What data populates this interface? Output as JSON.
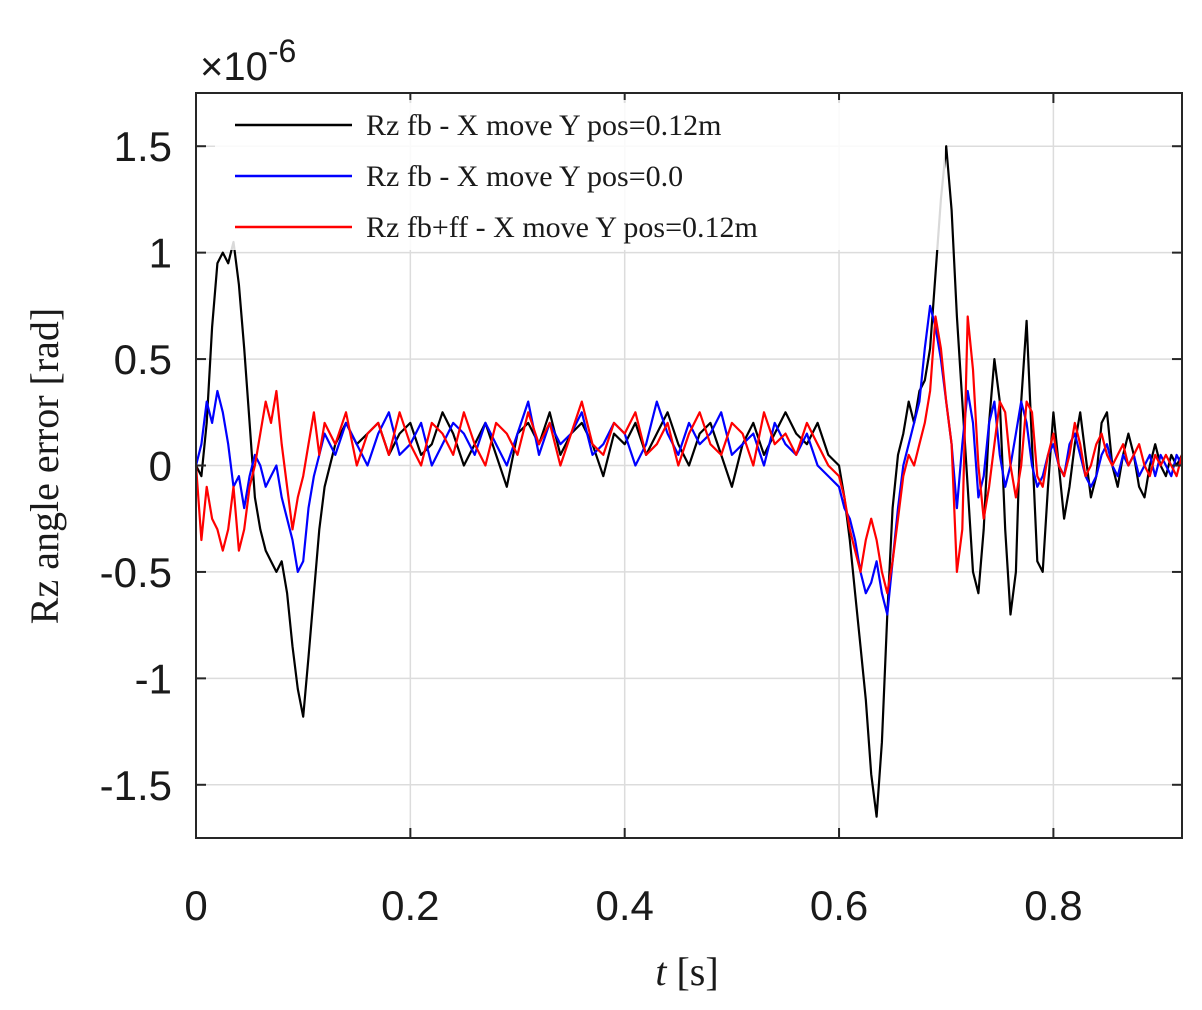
{
  "chart_data": {
    "type": "line",
    "title": "",
    "xlabel": "t [s]",
    "ylabel": "Rz angle error [rad]",
    "y_exponent_label": "×10-6",
    "y_scale": 1e-06,
    "xlim": [
      0,
      0.92
    ],
    "ylim": [
      -1.75,
      1.75
    ],
    "x_ticks": [
      0,
      0.2,
      0.4,
      0.6,
      0.8
    ],
    "x_tick_labels": [
      "0",
      "0.2",
      "0.4",
      "0.6",
      "0.8"
    ],
    "y_ticks": [
      1.5,
      1,
      0.5,
      0,
      -0.5,
      -1,
      -1.5
    ],
    "y_tick_labels": [
      "1.5",
      "1",
      "0.5",
      "0",
      "-0.5",
      "-1",
      "-1.5"
    ],
    "grid": true,
    "legend_position": "top",
    "series": [
      {
        "name": "Rz fb - X move Y pos=0.12m",
        "color": "#000000",
        "x": [
          0,
          0.005,
          0.01,
          0.015,
          0.02,
          0.025,
          0.03,
          0.035,
          0.04,
          0.045,
          0.05,
          0.055,
          0.06,
          0.065,
          0.07,
          0.075,
          0.08,
          0.085,
          0.09,
          0.095,
          0.1,
          0.105,
          0.11,
          0.115,
          0.12,
          0.13,
          0.14,
          0.15,
          0.16,
          0.17,
          0.18,
          0.19,
          0.2,
          0.21,
          0.22,
          0.23,
          0.24,
          0.25,
          0.26,
          0.27,
          0.28,
          0.29,
          0.3,
          0.31,
          0.32,
          0.33,
          0.34,
          0.35,
          0.36,
          0.37,
          0.38,
          0.39,
          0.4,
          0.41,
          0.42,
          0.43,
          0.44,
          0.45,
          0.46,
          0.47,
          0.48,
          0.49,
          0.5,
          0.51,
          0.52,
          0.53,
          0.54,
          0.55,
          0.56,
          0.57,
          0.58,
          0.59,
          0.6,
          0.605,
          0.61,
          0.615,
          0.62,
          0.625,
          0.63,
          0.635,
          0.64,
          0.645,
          0.65,
          0.655,
          0.66,
          0.665,
          0.67,
          0.675,
          0.68,
          0.685,
          0.69,
          0.695,
          0.7,
          0.705,
          0.71,
          0.715,
          0.72,
          0.725,
          0.73,
          0.735,
          0.74,
          0.745,
          0.75,
          0.755,
          0.76,
          0.765,
          0.77,
          0.775,
          0.78,
          0.785,
          0.79,
          0.795,
          0.8,
          0.805,
          0.81,
          0.815,
          0.82,
          0.825,
          0.83,
          0.835,
          0.84,
          0.845,
          0.85,
          0.855,
          0.86,
          0.865,
          0.87,
          0.875,
          0.88,
          0.885,
          0.89,
          0.895,
          0.9,
          0.905,
          0.91,
          0.915,
          0.92
        ],
        "values": [
          0,
          -0.05,
          0.2,
          0.65,
          0.95,
          1.0,
          0.95,
          1.05,
          0.85,
          0.55,
          0.2,
          -0.15,
          -0.3,
          -0.4,
          -0.45,
          -0.5,
          -0.45,
          -0.6,
          -0.85,
          -1.05,
          -1.18,
          -0.9,
          -0.6,
          -0.3,
          -0.1,
          0.1,
          0.2,
          0.1,
          0.15,
          0.2,
          0.05,
          0.15,
          0.2,
          0.05,
          0.1,
          0.25,
          0.15,
          0.0,
          0.1,
          0.2,
          0.05,
          -0.1,
          0.15,
          0.2,
          0.1,
          0.25,
          0.05,
          0.15,
          0.2,
          0.1,
          -0.05,
          0.15,
          0.1,
          0.2,
          0.05,
          0.15,
          0.25,
          0.1,
          0.0,
          0.15,
          0.2,
          0.05,
          -0.1,
          0.1,
          0.2,
          0.05,
          0.15,
          0.25,
          0.15,
          0.1,
          0.2,
          0.05,
          0.0,
          -0.15,
          -0.35,
          -0.6,
          -0.85,
          -1.1,
          -1.45,
          -1.65,
          -1.3,
          -0.7,
          -0.2,
          0.05,
          0.15,
          0.3,
          0.2,
          0.35,
          0.4,
          0.55,
          0.9,
          1.25,
          1.5,
          1.2,
          0.7,
          0.3,
          -0.1,
          -0.5,
          -0.6,
          -0.3,
          0.2,
          0.5,
          0.3,
          -0.3,
          -0.7,
          -0.5,
          0.3,
          0.68,
          0.1,
          -0.45,
          -0.5,
          -0.1,
          0.25,
          0.0,
          -0.25,
          -0.1,
          0.1,
          0.25,
          0.05,
          -0.15,
          -0.05,
          0.2,
          0.25,
          0.0,
          -0.1,
          0.05,
          0.15,
          0.05,
          -0.1,
          -0.15,
          0.0,
          0.1,
          0.0,
          -0.05,
          0.05,
          0.0,
          0.05
        ]
      },
      {
        "name": "Rz fb - X move Y pos=0.0",
        "color": "#0000ff",
        "x": [
          0,
          0.005,
          0.01,
          0.015,
          0.02,
          0.025,
          0.03,
          0.035,
          0.04,
          0.045,
          0.05,
          0.055,
          0.06,
          0.065,
          0.07,
          0.075,
          0.08,
          0.085,
          0.09,
          0.095,
          0.1,
          0.105,
          0.11,
          0.115,
          0.12,
          0.13,
          0.14,
          0.15,
          0.16,
          0.17,
          0.18,
          0.19,
          0.2,
          0.21,
          0.22,
          0.23,
          0.24,
          0.25,
          0.26,
          0.27,
          0.28,
          0.29,
          0.3,
          0.31,
          0.32,
          0.33,
          0.34,
          0.35,
          0.36,
          0.37,
          0.38,
          0.39,
          0.4,
          0.41,
          0.42,
          0.43,
          0.44,
          0.45,
          0.46,
          0.47,
          0.48,
          0.49,
          0.5,
          0.51,
          0.52,
          0.53,
          0.54,
          0.55,
          0.56,
          0.57,
          0.58,
          0.59,
          0.6,
          0.605,
          0.61,
          0.615,
          0.62,
          0.625,
          0.63,
          0.635,
          0.64,
          0.645,
          0.65,
          0.655,
          0.66,
          0.665,
          0.67,
          0.675,
          0.68,
          0.685,
          0.69,
          0.695,
          0.7,
          0.705,
          0.71,
          0.715,
          0.72,
          0.725,
          0.73,
          0.735,
          0.74,
          0.745,
          0.75,
          0.755,
          0.76,
          0.765,
          0.77,
          0.775,
          0.78,
          0.785,
          0.79,
          0.795,
          0.8,
          0.805,
          0.81,
          0.815,
          0.82,
          0.825,
          0.83,
          0.835,
          0.84,
          0.845,
          0.85,
          0.855,
          0.86,
          0.865,
          0.87,
          0.875,
          0.88,
          0.885,
          0.89,
          0.895,
          0.9,
          0.905,
          0.91,
          0.915,
          0.92
        ],
        "values": [
          0,
          0.1,
          0.3,
          0.2,
          0.35,
          0.25,
          0.1,
          -0.1,
          -0.05,
          -0.2,
          -0.05,
          0.05,
          0.0,
          -0.1,
          -0.05,
          0.0,
          -0.15,
          -0.25,
          -0.35,
          -0.5,
          -0.45,
          -0.2,
          -0.05,
          0.05,
          0.15,
          0.05,
          0.2,
          0.1,
          0.0,
          0.15,
          0.25,
          0.05,
          0.1,
          0.2,
          0.0,
          0.1,
          0.2,
          0.15,
          0.05,
          0.2,
          0.1,
          0.0,
          0.15,
          0.3,
          0.05,
          0.2,
          0.1,
          0.15,
          0.25,
          0.05,
          0.1,
          0.2,
          0.15,
          0.0,
          0.1,
          0.3,
          0.15,
          0.05,
          0.2,
          0.1,
          0.15,
          0.25,
          0.05,
          0.1,
          0.15,
          0.0,
          0.2,
          0.1,
          0.05,
          0.15,
          0.0,
          -0.05,
          -0.1,
          -0.2,
          -0.25,
          -0.35,
          -0.5,
          -0.6,
          -0.55,
          -0.45,
          -0.6,
          -0.7,
          -0.45,
          -0.2,
          0.0,
          0.1,
          0.2,
          0.3,
          0.55,
          0.75,
          0.65,
          0.5,
          0.3,
          0.1,
          -0.2,
          0.1,
          0.35,
          0.2,
          -0.15,
          -0.05,
          0.2,
          0.3,
          0.05,
          -0.1,
          0.0,
          0.15,
          0.3,
          0.2,
          0.0,
          -0.1,
          -0.05,
          0.05,
          0.1,
          0.0,
          -0.05,
          0.1,
          0.15,
          0.05,
          -0.05,
          -0.1,
          -0.05,
          0.05,
          0.1,
          0.0,
          -0.05,
          0.05,
          0.0,
          0.05,
          -0.05,
          0.0,
          0.05,
          -0.05,
          0.05,
          0.0,
          -0.05,
          0.05,
          0.0
        ]
      },
      {
        "name": "Rz fb+ff - X move Y pos=0.12m",
        "color": "#ff0000",
        "x": [
          0,
          0.005,
          0.01,
          0.015,
          0.02,
          0.025,
          0.03,
          0.035,
          0.04,
          0.045,
          0.05,
          0.055,
          0.06,
          0.065,
          0.07,
          0.075,
          0.08,
          0.085,
          0.09,
          0.095,
          0.1,
          0.105,
          0.11,
          0.115,
          0.12,
          0.13,
          0.14,
          0.15,
          0.16,
          0.17,
          0.18,
          0.19,
          0.2,
          0.21,
          0.22,
          0.23,
          0.24,
          0.25,
          0.26,
          0.27,
          0.28,
          0.29,
          0.3,
          0.31,
          0.32,
          0.33,
          0.34,
          0.35,
          0.36,
          0.37,
          0.38,
          0.39,
          0.4,
          0.41,
          0.42,
          0.43,
          0.44,
          0.45,
          0.46,
          0.47,
          0.48,
          0.49,
          0.5,
          0.51,
          0.52,
          0.53,
          0.54,
          0.55,
          0.56,
          0.57,
          0.58,
          0.59,
          0.6,
          0.605,
          0.61,
          0.615,
          0.62,
          0.625,
          0.63,
          0.635,
          0.64,
          0.645,
          0.65,
          0.655,
          0.66,
          0.665,
          0.67,
          0.675,
          0.68,
          0.685,
          0.69,
          0.695,
          0.7,
          0.705,
          0.71,
          0.715,
          0.72,
          0.725,
          0.73,
          0.735,
          0.74,
          0.745,
          0.75,
          0.755,
          0.76,
          0.765,
          0.77,
          0.775,
          0.78,
          0.785,
          0.79,
          0.795,
          0.8,
          0.805,
          0.81,
          0.815,
          0.82,
          0.825,
          0.83,
          0.835,
          0.84,
          0.845,
          0.85,
          0.855,
          0.86,
          0.865,
          0.87,
          0.875,
          0.88,
          0.885,
          0.89,
          0.895,
          0.9,
          0.905,
          0.91,
          0.915,
          0.92
        ],
        "values": [
          0,
          -0.35,
          -0.1,
          -0.25,
          -0.3,
          -0.4,
          -0.3,
          -0.1,
          -0.4,
          -0.3,
          -0.1,
          0.0,
          0.15,
          0.3,
          0.2,
          0.35,
          0.1,
          -0.1,
          -0.3,
          -0.15,
          -0.05,
          0.1,
          0.25,
          0.05,
          0.2,
          0.1,
          0.25,
          0.0,
          0.15,
          0.2,
          0.05,
          0.25,
          0.1,
          0.0,
          0.2,
          0.15,
          0.05,
          0.25,
          0.1,
          0.0,
          0.2,
          0.15,
          0.05,
          0.25,
          0.1,
          0.2,
          0.0,
          0.15,
          0.3,
          0.1,
          0.05,
          0.2,
          0.15,
          0.25,
          0.05,
          0.1,
          0.2,
          0.0,
          0.15,
          0.25,
          0.1,
          0.05,
          0.2,
          0.15,
          0.0,
          0.25,
          0.1,
          0.15,
          0.05,
          0.2,
          0.1,
          0.0,
          -0.05,
          -0.15,
          -0.3,
          -0.4,
          -0.5,
          -0.35,
          -0.25,
          -0.35,
          -0.5,
          -0.6,
          -0.45,
          -0.25,
          -0.05,
          0.05,
          0.0,
          0.1,
          0.2,
          0.35,
          0.7,
          0.55,
          0.3,
          0.1,
          -0.5,
          -0.3,
          0.7,
          0.45,
          0.0,
          -0.25,
          -0.1,
          0.1,
          0.3,
          0.25,
          0.0,
          -0.15,
          0.0,
          0.3,
          0.25,
          -0.05,
          -0.1,
          0.05,
          0.15,
          0.0,
          -0.05,
          0.05,
          0.2,
          0.1,
          -0.05,
          0.0,
          0.1,
          0.15,
          0.05,
          0.0,
          0.05,
          0.1,
          0.0,
          0.05,
          0.1,
          0.0,
          -0.05,
          0.05,
          0.0,
          0.05,
          0.0,
          -0.05,
          0.05
        ]
      }
    ]
  }
}
